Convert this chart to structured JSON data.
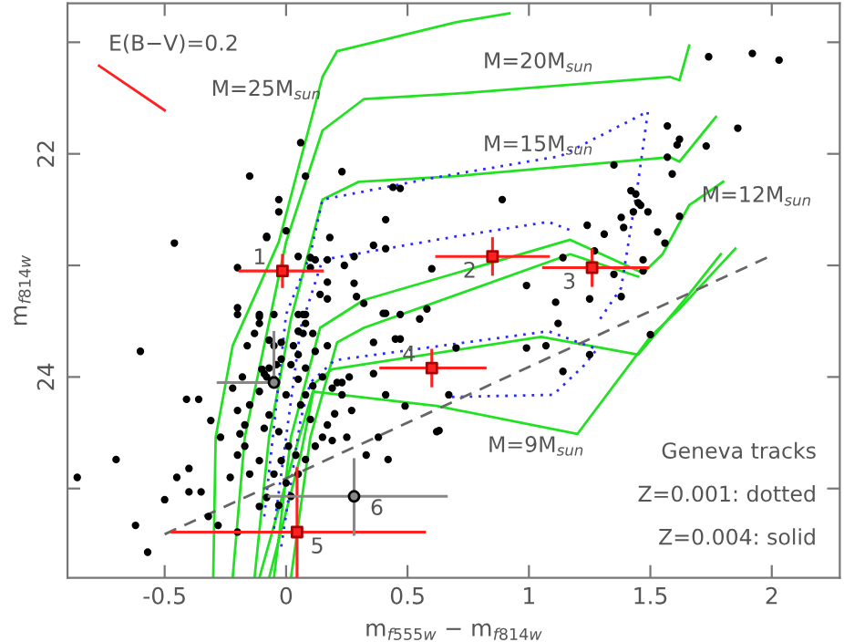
{
  "chart_data": {
    "type": "scatter",
    "xlabel": "m$_{f555w}$ − m$_{f814w}$",
    "ylabel": "m$_{f814w}$",
    "xlim": [
      -0.9,
      2.28
    ],
    "ylim": [
      25.8,
      20.65
    ],
    "xticks": [
      -0.5,
      0,
      0.5,
      1,
      1.5,
      2
    ],
    "yticks": [
      {
        "value": 21,
        "label": null
      },
      22,
      {
        "value": 23,
        "label": null
      },
      24,
      {
        "value": 25,
        "label": null
      }
    ],
    "grid": false,
    "series": [
      {
        "color": "#000000",
        "marker": "circle",
        "x": [
          1.74,
          1.92,
          2.03,
          1.57,
          1.62,
          1.61,
          1.73,
          1.86,
          1.57,
          1.35,
          1.59,
          0.89,
          1.42,
          1.44,
          1.45,
          1.46,
          1.43,
          1.49,
          1.38,
          1.39,
          1.31,
          1.24,
          1.53,
          1.56,
          1.62,
          1.47,
          1.47,
          1.14,
          1.27,
          1.35,
          1.38,
          1.25,
          1.11,
          0.99,
          1.12,
          1.5,
          0.67,
          0.63,
          0.99,
          1.07,
          1.14,
          1.25,
          0.41,
          0.18,
          0.28,
          0.17,
          0.36,
          0.41,
          0.6,
          0.29,
          0.32,
          0.41,
          0.58,
          0.05,
          0.12,
          0.14,
          0.17,
          0.36,
          0.47,
          0.7,
          0.41,
          0.26,
          0.23,
          0.19,
          -0.03,
          0,
          -0.08,
          0.1,
          0.07,
          0.08,
          0.05,
          0.07,
          0.11,
          -0.11,
          -0.11,
          -0.07,
          -0.02,
          0.03,
          -0.02,
          0.05,
          -0.04,
          -0.1,
          -0.08,
          -0.05,
          0.06,
          -0.15,
          0.08,
          0.23,
          -0.03,
          -0.08,
          -0.46,
          0.1,
          -0.2,
          -0.2,
          -0.2,
          -0.11,
          -0.05,
          0.08,
          0.4,
          0.44,
          0.47,
          0.24,
          0.17,
          0.28,
          -0.6,
          -0.86,
          -0.7,
          -0.57,
          -0.62,
          -0.5,
          -0.45,
          -0.4,
          -0.4,
          -0.35,
          -0.41,
          -0.36,
          -0.31,
          -0.27,
          -0.32,
          -0.28,
          -0.2,
          -0.23,
          -0.15,
          -0.11,
          -0.2,
          -0.17,
          -0.19,
          -0.17,
          -0.2,
          -0.15,
          -0.11,
          -0.09,
          -0.07,
          -0.18,
          -0.22,
          -0.16,
          -0.13,
          -0.05,
          0.02,
          0.05,
          0.08,
          0,
          -0.07,
          -0.09,
          -0.03,
          0.01,
          0.04,
          -0.02,
          -0.05,
          0,
          0.05,
          -0.08,
          -0.11,
          -0.03,
          0.02,
          0.08,
          0.12,
          0.15,
          0.17,
          0.1,
          0.2,
          0.23,
          0.27,
          0.19,
          0.25,
          0.33,
          0.42,
          0.38,
          0.36,
          0.45,
          0.47,
          0.49,
          0.55,
          0.62,
          0.06,
          0.11,
          0.15,
          0.21,
          0.08,
          0.12,
          0.17,
          0.05
        ],
        "values": [
          21.13,
          21.1,
          21.16,
          21.75,
          21.87,
          21.92,
          21.93,
          21.77,
          22.03,
          22.1,
          22.18,
          22.41,
          22.33,
          22.36,
          22.44,
          22.46,
          22.52,
          22.52,
          22.57,
          22.66,
          22.72,
          22.64,
          22.7,
          22.8,
          22.56,
          22.95,
          23.05,
          22.93,
          22.87,
          23.08,
          23.28,
          23.3,
          23.33,
          23.18,
          23.52,
          23.62,
          24.16,
          24.48,
          23.74,
          23.72,
          23.95,
          23.8,
          22.59,
          22.75,
          22.92,
          22.95,
          22.82,
          22.85,
          23.03,
          23.28,
          23.34,
          23.43,
          23.39,
          22.92,
          22.95,
          23.26,
          23.3,
          23.69,
          23.66,
          23.74,
          24.16,
          24.0,
          24.05,
          24.1,
          22.41,
          22.69,
          22.74,
          23.02,
          23.44,
          23.52,
          23.44,
          23.61,
          23.61,
          23.44,
          23.52,
          23.67,
          23.69,
          23.72,
          23.84,
          23.8,
          23.89,
          23.93,
          24.0,
          24.02,
          21.9,
          22.2,
          22.2,
          22.16,
          22.52,
          22.75,
          22.8,
          22.93,
          23.02,
          23.38,
          23.44,
          23.46,
          23.44,
          23.44,
          23.43,
          22.3,
          22.31,
          23.0,
          23.15,
          23.16,
          23.77,
          24.9,
          24.74,
          25.57,
          25.33,
          25.1,
          24.9,
          24.82,
          25.03,
          25.03,
          24.2,
          24.2,
          24.39,
          24.54,
          25.25,
          25.33,
          25.39,
          24.9,
          24.87,
          24.75,
          24.7,
          24.62,
          24.51,
          24.43,
          24.3,
          24.25,
          24.13,
          23.97,
          23.92,
          24.0,
          24.1,
          23.72,
          23.61,
          23.72,
          23.89,
          24.02,
          24.16,
          24.16,
          24.34,
          24.46,
          24.49,
          24.62,
          24.7,
          24.75,
          24.87,
          24.95,
          24.87,
          25.08,
          25.16,
          25.15,
          25.07,
          24.74,
          24.62,
          24.54,
          24.43,
          24.38,
          24.33,
          24.16,
          24.3,
          24.57,
          24.54,
          24.7,
          24.74,
          24.54,
          23.97,
          23.66,
          23.44,
          24.26,
          23.48,
          24.49,
          24.25,
          24.08,
          24.0,
          24.05,
          23.92,
          23.77,
          23.72,
          23.59
        ]
      },
      {
        "type": "line",
        "color": "#22e022",
        "line_style": "solid",
        "x": [
          -0.3,
          -0.29,
          -0.22,
          -0.03,
          0.15,
          0.21,
          0.7,
          0.92
        ],
        "values": [
          25.8,
          24.54,
          23.72,
          22.79,
          21.31,
          21.08,
          20.82,
          20.74
        ]
      },
      {
        "type": "line",
        "color": "#22e022",
        "line_style": "solid",
        "x": [
          -0.22,
          -0.17,
          0,
          0.15,
          0.32,
          0.7,
          1.58,
          1.62,
          1.66
        ],
        "values": [
          25.8,
          24.54,
          22.79,
          21.79,
          21.51,
          21.46,
          21.31,
          21.34,
          21.03
        ]
      },
      {
        "type": "line",
        "color": "#22e022",
        "line_style": "solid",
        "x": [
          -0.13,
          -0.07,
          0.02,
          0.15,
          0.3,
          0.7,
          1.58,
          1.62,
          1.77
        ],
        "values": [
          25.8,
          24.54,
          23.48,
          22.41,
          22.25,
          22.2,
          22.03,
          22.07,
          21.67
        ]
      },
      {
        "type": "line",
        "color": "#22e022",
        "line_style": "solid",
        "x": [
          -0.05,
          0.02,
          0.14,
          0.32,
          1.17,
          1.47,
          1.55,
          1.66,
          1.8
        ],
        "values": [
          25.8,
          24.54,
          23.56,
          23.31,
          22.77,
          23.07,
          22.9,
          22.46,
          22.25
        ]
      },
      {
        "type": "line",
        "color": "#22e022",
        "line_style": "solid",
        "x": [
          0.02,
          0.1,
          0.21,
          0.32,
          1.17,
          1.45
        ],
        "values": [
          25.8,
          24.54,
          23.69,
          23.56,
          22.9,
          23.1
        ]
      },
      {
        "type": "line",
        "color": "#22e022",
        "line_style": "solid",
        "x": [
          -0.07,
          0.06,
          0.12,
          0.19,
          1.05,
          1.45,
          1.64,
          1.79
        ],
        "values": [
          25.8,
          24.7,
          24.05,
          23.93,
          23.64,
          23.8,
          23.31,
          22.9
        ]
      },
      {
        "type": "line",
        "color": "#22e022",
        "line_style": "solid",
        "x": [
          -0.11,
          0.02,
          0.11,
          0.62,
          1.2,
          1.5,
          1.62,
          1.85
        ],
        "values": [
          25.8,
          24.79,
          24.13,
          24.26,
          24.51,
          23.64,
          23.39,
          22.85
        ]
      },
      {
        "type": "line",
        "color": "#2a2aff",
        "line_style": "dotted",
        "x": [
          -0.09,
          0,
          0.1,
          0.15,
          0.62,
          1.13,
          1.49,
          1.45,
          1.38,
          1.29
        ],
        "values": [
          25.25,
          23.44,
          22.9,
          22.41,
          22.21,
          22.02,
          21.62,
          22.25,
          23.2,
          23.49
        ]
      },
      {
        "type": "line",
        "color": "#2a2aff",
        "line_style": "dotted",
        "x": [
          -0.05,
          0.06,
          0.15,
          0.7,
          1.08,
          1.19
        ],
        "values": [
          25.36,
          23.56,
          22.95,
          22.74,
          22.61,
          22.7
        ]
      },
      {
        "type": "line",
        "color": "#2a2aff",
        "line_style": "dotted",
        "x": [
          -0.02,
          0.06,
          0.1,
          0.2,
          1.08,
          1.28,
          1.23,
          1.1,
          0.66
        ],
        "values": [
          25.52,
          24.38,
          24.05,
          23.85,
          23.59,
          23.75,
          23.89,
          24.16,
          24.18
        ]
      },
      {
        "type": "line",
        "color": "#666666",
        "line_style": "dashed",
        "x": [
          -0.5,
          1.98
        ],
        "values": [
          25.41,
          22.93
        ]
      },
      {
        "type": "line",
        "color": "#ff2020",
        "line_style": "solid",
        "x": [
          -0.77,
          -0.5
        ],
        "values": [
          21.21,
          21.61
        ]
      },
      {
        "color": "#ff2020",
        "marker": "square",
        "x": [
          -0.015,
          0.85,
          1.26,
          0.6,
          0.045
        ],
        "values": [
          23.05,
          22.92,
          23.02,
          23.92,
          25.39
        ],
        "xerrors": [
          [
            -0.19,
            0.15
          ],
          [
            0.62,
            1.08
          ],
          [
            1.06,
            1.49
          ],
          [
            0.39,
            0.82
          ],
          [
            -0.47,
            0.57
          ]
        ],
        "errors": [
          [
            22.91,
            23.19
          ],
          [
            22.76,
            23.08
          ],
          [
            22.86,
            23.18
          ],
          [
            23.76,
            24.08
          ],
          [
            24.82,
            25.8
          ]
        ]
      },
      {
        "color": "#888888",
        "marker": "circle",
        "x": [
          0.28,
          -0.05
        ],
        "values": [
          25.07,
          24.05
        ],
        "xerrors": [
          [
            -0.07,
            0.66
          ],
          [
            -0.28,
            -0.05
          ]
        ],
        "errors": [
          [
            24.74,
            25.41
          ],
          [
            23.6,
            24.05
          ]
        ]
      }
    ],
    "annotations": [
      "E(B−V)=0.2",
      "M=25M$_{sun}$",
      "M=20M$_{sun}$",
      "M=15M$_{sun}$",
      "M=12M$_{sun}$",
      "M=9M$_{sun}$",
      {
        "text": "1",
        "x": -0.015,
        "y": 23.05
      },
      {
        "text": "2",
        "x": 0.85,
        "y": 22.92
      },
      {
        "text": "3",
        "x": 1.26,
        "y": 23.02
      },
      {
        "text": "4",
        "x": 0.6,
        "y": 23.92
      },
      {
        "text": "5",
        "x": 0.045,
        "y": 25.39
      },
      {
        "text": "6",
        "x": 0.28,
        "y": 25.07
      },
      "Geneva tracks",
      "Z=0.001: dotted",
      "Z=0.004: solid"
    ]
  }
}
